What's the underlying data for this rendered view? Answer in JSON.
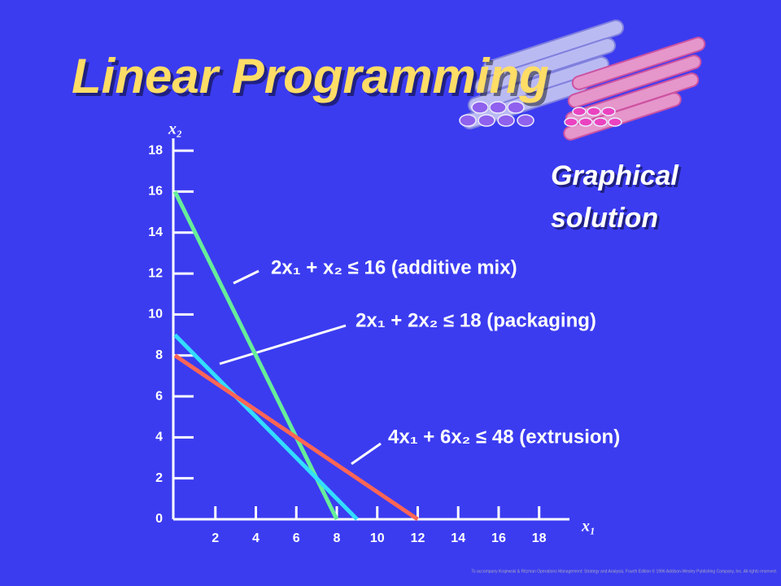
{
  "chart_data": {
    "type": "line",
    "title": "Linear Programming",
    "subtitle": [
      "Graphical",
      "solution"
    ],
    "x_label": "x₁",
    "y_label": "x₂",
    "footer": "To accompany Krajewski & Ritzman Operations Management: Strategy and Analysis, Fourth Edition © 1996 Addison-Wesley Publishing Company, Inc. All rights reserved.",
    "xlim": [
      0,
      19.5
    ],
    "ylim": [
      0,
      18.6
    ],
    "xticks": [
      2,
      4,
      6,
      8,
      10,
      12,
      14,
      16,
      18
    ],
    "yticks": [
      0,
      2,
      4,
      6,
      8,
      10,
      12,
      14,
      16,
      18
    ],
    "series": [
      {
        "name": "2x₁ + x₂ ≤ 16 (additive mix)",
        "color": "#66ee99",
        "x": [
          0,
          8
        ],
        "values": [
          16,
          0
        ]
      },
      {
        "name": "2x₁ + 2x₂ ≤ 18 (packaging)",
        "color": "#33ddff",
        "x": [
          0,
          9
        ],
        "values": [
          9,
          0
        ]
      },
      {
        "name": "4x₁ + 6x₂ ≤ 48 (extrusion)",
        "color": "#ff6655",
        "x": [
          0,
          12
        ],
        "values": [
          8,
          0
        ]
      }
    ]
  }
}
